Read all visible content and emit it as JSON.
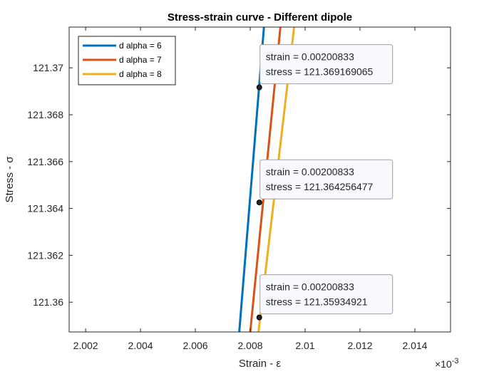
{
  "chart_data": {
    "type": "line",
    "title": "Stress-strain curve - Different dipole",
    "xlabel": "Strain - ε",
    "ylabel": "Stress - σ",
    "x_exponent_label": "×10",
    "x_exponent_power": "-3",
    "x_scale_factor": 0.001,
    "xlim": [
      0.0020014,
      0.0020153
    ],
    "ylim": [
      121.35873,
      121.37174
    ],
    "xticks": [
      0.002002,
      0.002004,
      0.002006,
      0.002008,
      0.00201,
      0.002012,
      0.002014
    ],
    "xtick_labels": [
      "2.002",
      "2.004",
      "2.006",
      "2.008",
      "2.01",
      "2.012",
      "2.014"
    ],
    "yticks": [
      121.36,
      121.362,
      121.364,
      121.366,
      121.368,
      121.37
    ],
    "ytick_labels": [
      "121.36",
      "121.362",
      "121.364",
      "121.366",
      "121.368",
      "121.37"
    ],
    "grid": false,
    "legend_position": "top-left",
    "series": [
      {
        "name": "d alpha = 6",
        "color": "#0072BD",
        "x": [
          0.0020076,
          0.0020085
        ],
        "y": [
          121.35873,
          121.37174
        ]
      },
      {
        "name": "d alpha = 7",
        "color": "#D95319",
        "x": [
          0.002008,
          0.0020091
        ],
        "y": [
          121.35873,
          121.37174
        ]
      },
      {
        "name": "d alpha = 8",
        "color": "#EDB120",
        "x": [
          0.0020083,
          0.0020096
        ],
        "y": [
          121.35873,
          121.37174
        ]
      }
    ],
    "datatips": [
      {
        "x": 0.00200833,
        "y": 121.369169065,
        "line1": "strain = 0.00200833",
        "line2": "stress = 121.369169065"
      },
      {
        "x": 0.00200833,
        "y": 121.364256477,
        "line1": "strain = 0.00200833",
        "line2": "stress = 121.364256477"
      },
      {
        "x": 0.00200833,
        "y": 121.35934921,
        "line1": "strain = 0.00200833",
        "line2": "stress = 121.35934921"
      }
    ]
  }
}
